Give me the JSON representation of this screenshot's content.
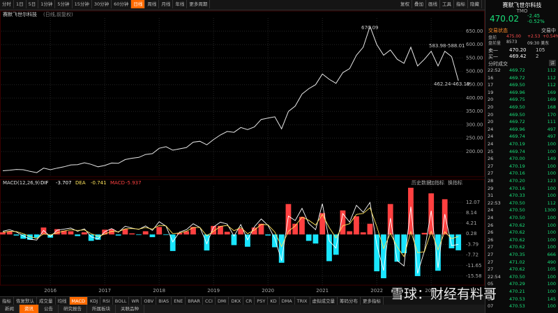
{
  "toolbar": {
    "periods": [
      "分时",
      "1日",
      "5日",
      "1分钟",
      "5分钟",
      "15分钟",
      "30分钟",
      "60分钟",
      "日线",
      "周线",
      "月线",
      "年线",
      "更多周期"
    ],
    "active": 8,
    "tools": [
      "复权",
      "叠加",
      "画线",
      "工具",
      "指标",
      "隐藏"
    ]
  },
  "chart_data": [
    {
      "type": "line",
      "title": "赛默飞世尔科技",
      "subtitle": "(日线,前复权)",
      "x": [
        2015.125,
        2015.25,
        2015.375,
        2015.5,
        2015.625,
        2015.75,
        2015.875,
        2016.0,
        2016.125,
        2016.25,
        2016.375,
        2016.5,
        2016.625,
        2016.75,
        2016.875,
        2017.0,
        2017.125,
        2017.25,
        2017.375,
        2017.5,
        2017.625,
        2017.75,
        2017.875,
        2018.0,
        2018.125,
        2018.25,
        2018.375,
        2018.5,
        2018.625,
        2018.75,
        2018.875,
        2019.0,
        2019.125,
        2019.25,
        2019.375,
        2019.5,
        2019.625,
        2019.75,
        2019.875,
        2020.0,
        2020.125,
        2020.25,
        2020.375,
        2020.5,
        2020.625,
        2020.75,
        2020.875,
        2021.0,
        2021.125,
        2021.25,
        2021.375,
        2021.5,
        2021.625,
        2021.75,
        2021.875,
        2022.0,
        2022.125,
        2022.25,
        2022.375,
        2022.5,
        2022.625,
        2022.75,
        2022.875,
        2023.0,
        2023.125,
        2023.25,
        2023.375,
        2023.5
      ],
      "series": [
        {
          "color": "#e8e8e8",
          "values": [
            128,
            130,
            133,
            132,
            126,
            121,
            138,
            132,
            138,
            143,
            150,
            151,
            158,
            152,
            143,
            148,
            157,
            156,
            170,
            175,
            178,
            189,
            192,
            212,
            218,
            205,
            210,
            215,
            235,
            238,
            225,
            245,
            262,
            275,
            272,
            290,
            282,
            292,
            320,
            325,
            330,
            285,
            350,
            370,
            415,
            435,
            450,
            490,
            470,
            455,
            495,
            510,
            560,
            590,
            668,
            600,
            560,
            580,
            545,
            530,
            590,
            520,
            545,
            575,
            520,
            575,
            555,
            465
          ]
        }
      ],
      "xlim": [
        2015.1,
        2023.6
      ],
      "ylim": [
        106,
        699
      ],
      "yticks": [
        {
          "value": 200,
          "label": "200.00"
        },
        {
          "value": 250,
          "label": "250.00"
        },
        {
          "value": 300,
          "label": "300.00"
        },
        {
          "value": 350,
          "label": "350.00"
        },
        {
          "value": 400,
          "label": "400.00"
        },
        {
          "value": 450,
          "label": "450.00"
        },
        {
          "value": 500,
          "label": "500.00"
        },
        {
          "value": 550,
          "label": "550.00"
        },
        {
          "value": 600,
          "label": "600.00"
        },
        {
          "value": 650,
          "label": "650.00"
        }
      ],
      "xticks": [
        2016,
        2017,
        2018,
        2019,
        2020,
        2021,
        2022,
        2023
      ],
      "grid": true,
      "annotations": [
        "670.09",
        "583.98-588.01",
        "462.24-463.19"
      ]
    },
    {
      "type": "macd",
      "title": "MACD(12,26,9)",
      "links": [
        "历史数据",
        "加指标",
        "换指标"
      ],
      "x": [
        2015.125,
        2015.25,
        2015.375,
        2015.5,
        2015.625,
        2015.75,
        2015.875,
        2016.0,
        2016.125,
        2016.25,
        2016.375,
        2016.5,
        2016.625,
        2016.75,
        2016.875,
        2017.0,
        2017.125,
        2017.25,
        2017.375,
        2017.5,
        2017.625,
        2017.75,
        2017.875,
        2018.0,
        2018.125,
        2018.25,
        2018.375,
        2018.5,
        2018.625,
        2018.75,
        2018.875,
        2019.0,
        2019.125,
        2019.25,
        2019.375,
        2019.5,
        2019.625,
        2019.75,
        2019.875,
        2020.0,
        2020.125,
        2020.25,
        2020.375,
        2020.5,
        2020.625,
        2020.75,
        2020.875,
        2021.0,
        2021.125,
        2021.25,
        2021.375,
        2021.5,
        2021.625,
        2021.75,
        2021.875,
        2022.0,
        2022.125,
        2022.25,
        2022.375,
        2022.5,
        2022.625,
        2022.75,
        2022.875,
        2023.0,
        2023.125,
        2023.25,
        2023.375,
        2023.5
      ],
      "series": [
        {
          "name": "DIF",
          "latest": -3.707,
          "color": "#ffffff",
          "values": [
            1.2,
            1.8,
            0.9,
            -0.5,
            -1.8,
            -2.1,
            1.5,
            -0.8,
            1.6,
            2.0,
            2.4,
            1.2,
            2.1,
            -0.9,
            -1.7,
            1.0,
            2.2,
            0.8,
            3.1,
            2.4,
            1.9,
            3.2,
            1.5,
            4.8,
            3.1,
            -2.8,
            0.9,
            1.8,
            4.0,
            2.6,
            -3.5,
            2.8,
            4.6,
            3.9,
            -0.6,
            3.7,
            -2.0,
            2.9,
            5.8,
            3.4,
            -1.5,
            -9.8,
            6.9,
            5.2,
            9.8,
            4.1,
            1.8,
            11.5,
            -2.4,
            -5.1,
            7.8,
            4.6,
            10.9,
            8.3,
            12.0,
            -3.9,
            -13.5,
            6.1,
            -9.8,
            -11.8,
            10.4,
            -14.6,
            -6.2,
            8.9,
            -12.5,
            7.6,
            -4.2,
            -3.707
          ]
        },
        {
          "name": "DEA",
          "latest": -0.741,
          "color": "#ffe45c",
          "values": [
            0.8,
            1.2,
            1.1,
            0.3,
            -0.8,
            -1.5,
            0.2,
            -0.2,
            0.6,
            1.3,
            1.8,
            1.5,
            1.7,
            0.3,
            -0.7,
            0.1,
            1.2,
            1.0,
            2.1,
            2.2,
            2.0,
            2.6,
            2.0,
            3.4,
            3.2,
            0.3,
            0.6,
            1.2,
            2.6,
            2.6,
            -0.5,
            1.2,
            3.0,
            3.4,
            1.4,
            2.6,
            0.3,
            1.6,
            3.8,
            3.6,
            0.9,
            -4.5,
            1.2,
            3.2,
            6.5,
            5.3,
            3.5,
            7.5,
            2.6,
            -1.3,
            3.3,
            4.0,
            7.5,
            7.9,
            10.0,
            3.0,
            -5.3,
            0.4,
            -4.7,
            -8.3,
            1.1,
            -6.8,
            -6.5,
            1.2,
            -5.7,
            1.0,
            -1.6,
            -0.741
          ]
        },
        {
          "name": "MACD",
          "latest": -5.937,
          "color": "#ff4040",
          "color_down": "#19e6ff",
          "values": [
            0.8,
            1.2,
            -0.4,
            -1.6,
            -2.0,
            -1.2,
            2.6,
            -1.2,
            2.0,
            1.4,
            1.2,
            -0.6,
            0.8,
            -2.4,
            -2.0,
            1.8,
            2.0,
            -0.4,
            2.0,
            0.4,
            -0.2,
            1.2,
            -1.0,
            2.8,
            -0.2,
            -6.2,
            0.6,
            1.2,
            2.8,
            0.0,
            -6.0,
            3.2,
            3.2,
            1.0,
            -4.0,
            2.2,
            -4.6,
            2.6,
            4.0,
            -0.4,
            -4.8,
            -10.6,
            11.4,
            4.0,
            6.6,
            -2.4,
            -3.4,
            8.0,
            -10.0,
            -7.6,
            9.0,
            1.2,
            6.8,
            0.8,
            4.0,
            -13.8,
            -16.4,
            11.4,
            -10.2,
            -7.0,
            17.5,
            -15.6,
            0.6,
            15.4,
            -13.6,
            13.2,
            -5.2,
            -5.937
          ]
        }
      ],
      "xlim": [
        2015.1,
        2023.6
      ],
      "ylim": [
        -19,
        18
      ],
      "yticks": [
        12.07,
        8.14,
        4.21,
        0.28,
        -3.79,
        -7.72,
        -11.65,
        -15.58
      ],
      "xticks": [
        2016,
        2017,
        2018,
        2019,
        2020,
        2021,
        2022,
        2023
      ],
      "grid": true
    }
  ],
  "indicator_tabs": [
    "指标",
    "恢复默认",
    "成交量",
    "均线",
    "MACD",
    "KDJ",
    "RSI",
    "BOLL",
    "WR",
    "OBV",
    "BIAS",
    "ENE",
    "BRAR",
    "CCI",
    "DMI",
    "DKX",
    "CR",
    "PSY",
    "KD",
    "DMA",
    "TRIX",
    "虚拟成交量",
    "筹码分布",
    "更多指标"
  ],
  "indicator_active": 4,
  "bottom_tabs": [
    "新闻",
    "资讯",
    "公告",
    "研究报告",
    "所属板块",
    "关联品种"
  ],
  "bottom_active": 1,
  "quote": {
    "name": "赛默飞世尔科技",
    "symbol": "TMO",
    "price": 470.02,
    "change": -2.45,
    "change_pct": "-0.52%"
  },
  "status": {
    "label": "交易状态",
    "value": "交易中"
  },
  "premarket": [
    [
      "盘前",
      "475.00",
      "+2.53",
      "+0.54%"
    ],
    [
      "盘前量",
      "8573",
      "09:30 美东"
    ]
  ],
  "book": [
    [
      "卖一",
      "470.20",
      "105"
    ],
    [
      "买一",
      "469.42",
      "2"
    ]
  ],
  "trades": {
    "title": "分时成交",
    "more": "详",
    "rows": [
      [
        "22:52",
        "469.72",
        "112"
      ],
      [
        "16",
        "469.72",
        "112"
      ],
      [
        "17",
        "469.50",
        "112"
      ],
      [
        "19",
        "469.96",
        "169"
      ],
      [
        "20",
        "469.75",
        "169"
      ],
      [
        "20",
        "469.50",
        "168"
      ],
      [
        "20",
        "469.50",
        "170"
      ],
      [
        "20",
        "469.72",
        "111"
      ],
      [
        "24",
        "469.96",
        "497"
      ],
      [
        "24",
        "469.74",
        "497"
      ],
      [
        "24",
        "470.19",
        "100"
      ],
      [
        "25",
        "469.74",
        "100"
      ],
      [
        "26",
        "470.00",
        "149"
      ],
      [
        "27",
        "470.19",
        "100"
      ],
      [
        "27",
        "470.16",
        "100"
      ],
      [
        "28",
        "470.20",
        "123"
      ],
      [
        "29",
        "470.16",
        "100"
      ],
      [
        "31",
        "470.33",
        "100"
      ],
      [
        "22:53",
        "470.50",
        "112"
      ],
      [
        "24",
        "470.50",
        "1300"
      ],
      [
        "24",
        "470.50",
        "100"
      ],
      [
        "26",
        "470.62",
        "100"
      ],
      [
        "26",
        "470.62",
        "100"
      ],
      [
        "26",
        "470.62",
        "100"
      ],
      [
        "27",
        "470.62",
        "100"
      ],
      [
        "27",
        "470.35",
        "666"
      ],
      [
        "27",
        "471.02",
        "490"
      ],
      [
        "27",
        "470.62",
        "105"
      ],
      [
        "22:54",
        "470.50",
        "100"
      ],
      [
        "05",
        "470.29",
        "100"
      ],
      [
        "05",
        "470.21",
        "100"
      ],
      [
        "06",
        "470.53",
        "145"
      ],
      [
        "07",
        "470.53",
        "100"
      ]
    ]
  },
  "watermark": "雪球：财经有料哥"
}
